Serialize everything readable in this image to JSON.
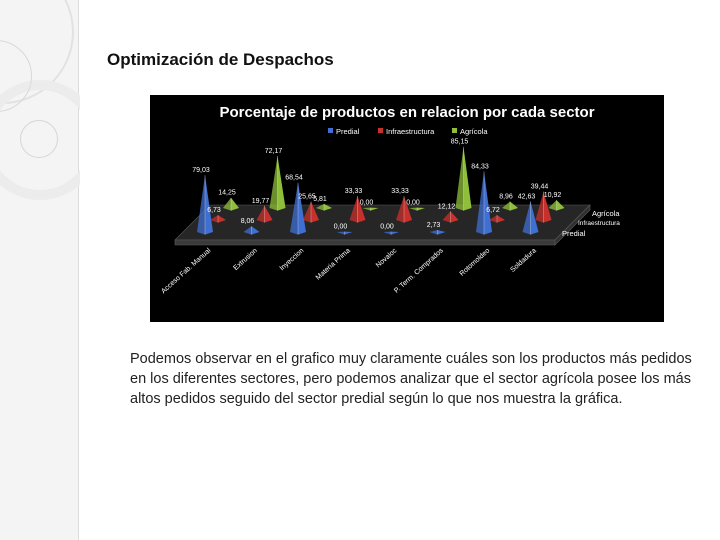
{
  "slide": {
    "title": "Optimización de Despachos",
    "body": "Podemos observar en el grafico muy claramente cuáles son los productos más pedidos en los diferentes sectores, pero podemos analizar que el sector agrícola posee los más altos pedidos seguido del sector predial según lo que nos muestra la gráfica."
  },
  "chart_data": {
    "type": "bar",
    "title": "Porcentaje de productos en relacion por cada sector",
    "categories": [
      "Acceso Fab. Manual",
      "Extrusion",
      "Inyeccion",
      "Materia Prima",
      "Novaloc",
      "P. Term. Comprados",
      "Rotomoldeo",
      "Soldadura"
    ],
    "series": [
      {
        "name": "Predial",
        "color": "#3f6fd0",
        "values": [
          79.03,
          8.06,
          68.54,
          0.0,
          0.0,
          2.73,
          84.33,
          42.63
        ]
      },
      {
        "name": "Infraestructura",
        "color": "#c8302c",
        "values": [
          6.73,
          19.77,
          25.65,
          33.33,
          33.33,
          12.12,
          6.72,
          39.44
        ]
      },
      {
        "name": "Agrícola",
        "color": "#8fbf3a",
        "values": [
          14.25,
          72.17,
          5.81,
          0.0,
          0.0,
          85.15,
          8.96,
          10.92
        ]
      }
    ],
    "legend_position": "top",
    "depth_labels": [
      "Agrícola",
      "Infraestructura",
      "Predial"
    ]
  }
}
